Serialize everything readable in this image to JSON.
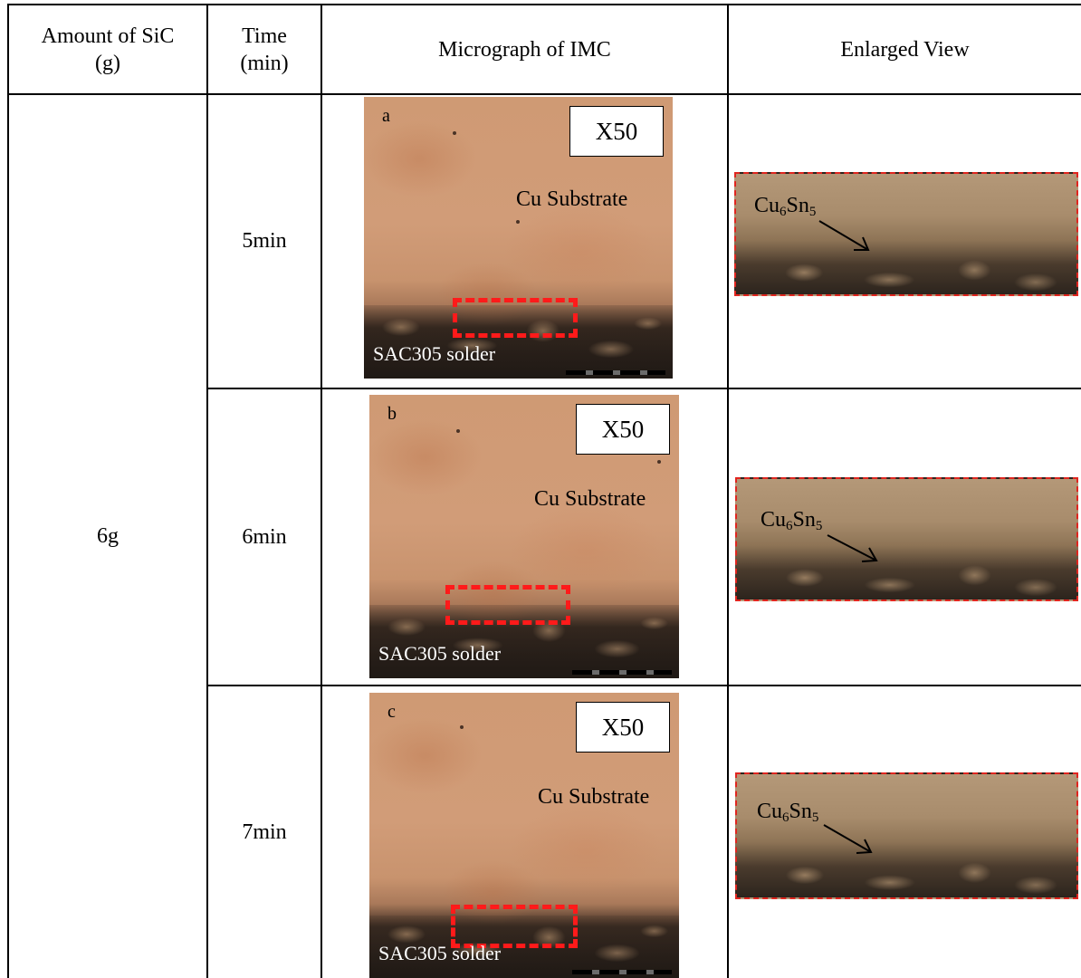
{
  "header": {
    "amount": "Amount of SiC (g)",
    "time": "Time (min)",
    "micrograph": "Micrograph of IMC",
    "enlarged": "Enlarged View"
  },
  "amount_value": "6g",
  "rows": [
    {
      "time": "5min",
      "letter": "a",
      "magnification": "X50",
      "substrate_label": "Cu Substrate",
      "solder_label": "SAC305 solder",
      "phase_base": "Cu",
      "phase_sub1": "6",
      "phase_mid": "Sn",
      "phase_sub2": "5"
    },
    {
      "time": "6min",
      "letter": "b",
      "magnification": "X50",
      "substrate_label": "Cu Substrate",
      "solder_label": "SAC305 solder",
      "phase_base": "Cu",
      "phase_sub1": "6",
      "phase_mid": "Sn",
      "phase_sub2": "5"
    },
    {
      "time": "7min",
      "letter": "c",
      "magnification": "X50",
      "substrate_label": "Cu Substrate",
      "solder_label": "SAC305 solder",
      "phase_base": "Cu",
      "phase_sub1": "6",
      "phase_mid": "Sn",
      "phase_sub2": "5"
    }
  ]
}
